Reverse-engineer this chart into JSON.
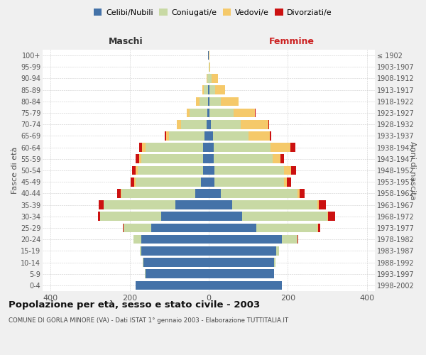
{
  "age_groups": [
    "0-4",
    "5-9",
    "10-14",
    "15-19",
    "20-24",
    "25-29",
    "30-34",
    "35-39",
    "40-44",
    "45-49",
    "50-54",
    "55-59",
    "60-64",
    "65-69",
    "70-74",
    "75-79",
    "80-84",
    "85-89",
    "90-94",
    "95-99",
    "100+"
  ],
  "birth_years": [
    "1998-2002",
    "1993-1997",
    "1988-1992",
    "1983-1987",
    "1978-1982",
    "1973-1977",
    "1968-1972",
    "1963-1967",
    "1958-1962",
    "1953-1957",
    "1948-1952",
    "1943-1947",
    "1938-1942",
    "1933-1937",
    "1928-1932",
    "1923-1927",
    "1918-1922",
    "1913-1917",
    "1908-1912",
    "1903-1907",
    "≤ 1902"
  ],
  "males": {
    "celibe": [
      185,
      160,
      165,
      170,
      170,
      145,
      120,
      85,
      35,
      20,
      15,
      15,
      15,
      10,
      5,
      3,
      2,
      2,
      0,
      0,
      1
    ],
    "coniugato": [
      0,
      1,
      2,
      5,
      20,
      70,
      155,
      180,
      185,
      165,
      165,
      155,
      145,
      90,
      65,
      45,
      22,
      10,
      3,
      0,
      0
    ],
    "vedovo": [
      0,
      0,
      0,
      0,
      0,
      0,
      0,
      1,
      2,
      3,
      5,
      6,
      8,
      8,
      10,
      8,
      8,
      5,
      2,
      0,
      0
    ],
    "divorziato": [
      0,
      0,
      0,
      0,
      1,
      2,
      5,
      12,
      10,
      10,
      8,
      8,
      8,
      3,
      1,
      0,
      0,
      0,
      0,
      0,
      0
    ]
  },
  "females": {
    "nubile": [
      185,
      165,
      165,
      170,
      185,
      120,
      85,
      60,
      30,
      15,
      15,
      12,
      12,
      10,
      5,
      2,
      2,
      2,
      0,
      0,
      0
    ],
    "coniugata": [
      0,
      1,
      3,
      8,
      40,
      155,
      215,
      215,
      195,
      175,
      175,
      150,
      145,
      90,
      75,
      60,
      28,
      15,
      8,
      1,
      0
    ],
    "vedova": [
      0,
      0,
      0,
      0,
      0,
      1,
      2,
      3,
      5,
      8,
      18,
      20,
      50,
      55,
      70,
      55,
      45,
      25,
      15,
      2,
      1
    ],
    "divorziata": [
      0,
      0,
      0,
      0,
      2,
      5,
      18,
      18,
      12,
      10,
      12,
      8,
      12,
      3,
      2,
      1,
      0,
      0,
      0,
      0,
      0
    ]
  },
  "colors": {
    "celibe_nubile": "#4472a8",
    "coniugato_a": "#c8d9a4",
    "vedovo_a": "#f5c96a",
    "divorziato_a": "#cc1111"
  },
  "xlim": 420,
  "title": "Popolazione per età, sesso e stato civile - 2003",
  "subtitle": "COMUNE DI GORLA MINORE (VA) - Dati ISTAT 1° gennaio 2003 - Elaborazione TUTTITALIA.IT",
  "xlabel_left": "Maschi",
  "xlabel_right": "Femmine",
  "ylabel_left": "Fasce di età",
  "ylabel_right": "Anni di nascita",
  "bg_color": "#f0f0f0",
  "plot_bg": "#ffffff",
  "grid_color": "#cccccc"
}
